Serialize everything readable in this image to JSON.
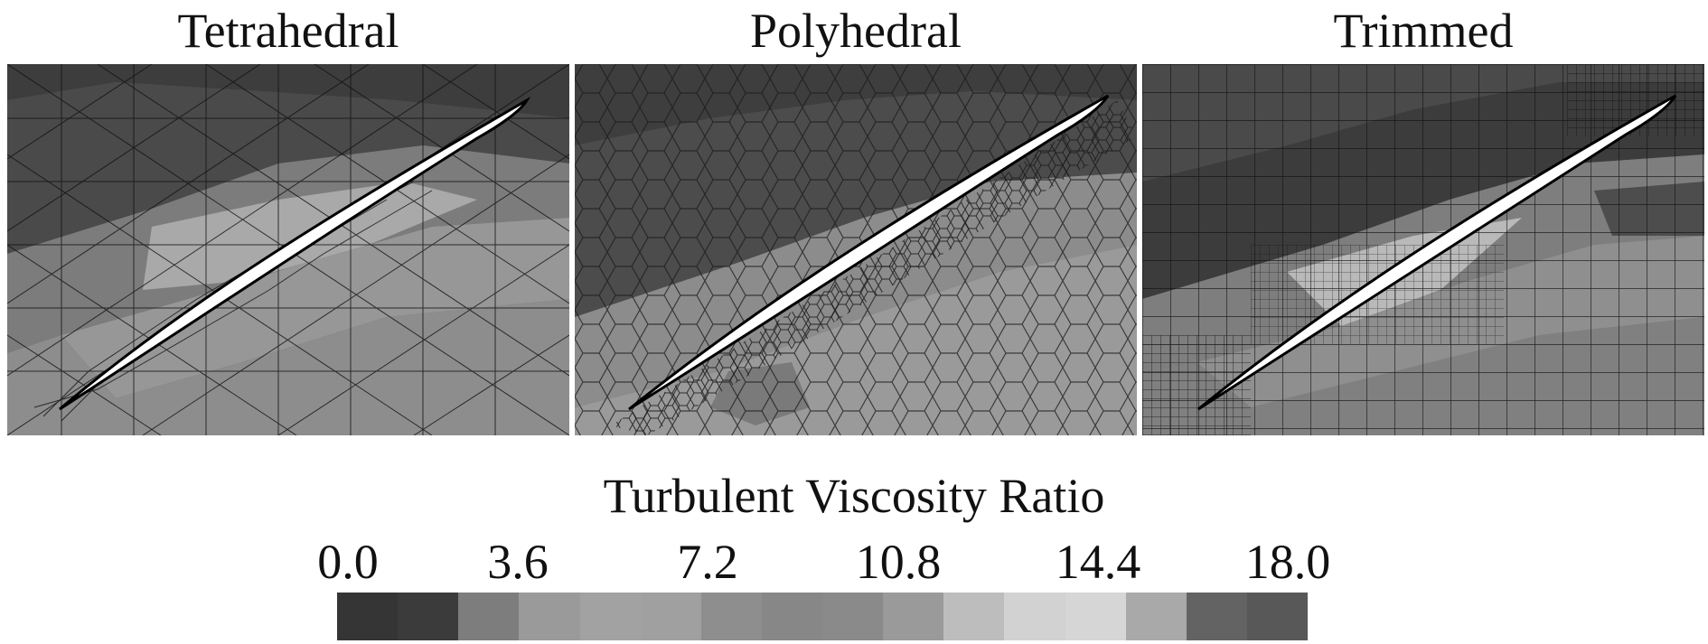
{
  "panels": [
    {
      "title": "Tetrahedral",
      "mesh": "tetrahedral"
    },
    {
      "title": "Polyhedral",
      "mesh": "polyhedral"
    },
    {
      "title": "Trimmed",
      "mesh": "trimmed"
    }
  ],
  "colorbar": {
    "title": "Turbulent Viscosity Ratio",
    "ticks": [
      "0.0",
      "3.6",
      "7.2",
      "10.8",
      "14.4",
      "18.0"
    ],
    "min": 0.0,
    "max": 18.0,
    "colors": [
      "#353535",
      "#3b3b3b",
      "#7d7d7d",
      "#9a9a9a",
      "#a2a2a2",
      "#a0a0a0",
      "#8e8e8e",
      "#878787",
      "#8a8a8a",
      "#9a9a9a",
      "#bdbdbd",
      "#d2d2d2",
      "#d6d6d6",
      "#a9a9a9",
      "#636363",
      "#585858"
    ]
  },
  "colors": {
    "background": "#ffffff",
    "blade_fill": "#ffffff",
    "blade_edge": "#000000",
    "mesh_line": "#111111"
  }
}
